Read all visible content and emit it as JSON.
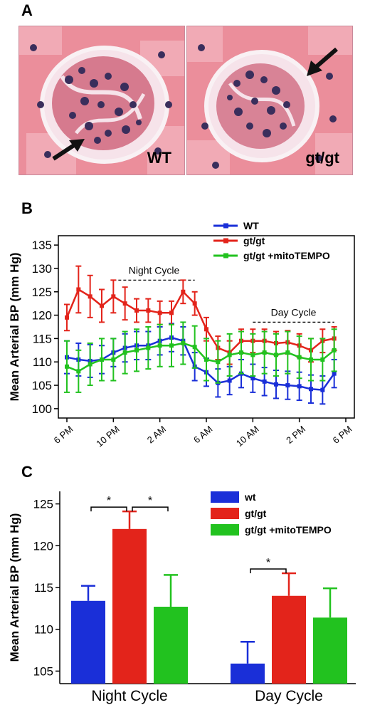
{
  "panels": {
    "A": {
      "letter": "A",
      "images": [
        {
          "label": "WT"
        },
        {
          "label": "gt/gt"
        }
      ]
    },
    "B": {
      "letter": "B"
    },
    "C": {
      "letter": "C"
    }
  },
  "colors": {
    "wt": "#1a2fd8",
    "gtgt": "#e3241b",
    "mito": "#22c21f",
    "tissue": "#e98a97",
    "nucleus": "#3a2e5c"
  },
  "chart_data": [
    {
      "type": "line",
      "ylabel": "Mean Arterial BP (mm Hg)",
      "ylim": [
        98,
        137
      ],
      "yticks": [
        100,
        105,
        110,
        115,
        120,
        125,
        130,
        135
      ],
      "xtick_labels": [
        "6 PM",
        "10 PM",
        "2 AM",
        "6 AM",
        "10 AM",
        "2 PM",
        "6 PM"
      ],
      "xtick_hours": [
        0,
        4,
        8,
        12,
        16,
        20,
        24
      ],
      "x_hours": [
        0,
        1,
        2,
        3,
        4,
        5,
        6,
        7,
        8,
        9,
        10,
        11,
        12,
        13,
        14,
        15,
        16,
        17,
        18,
        19,
        20,
        21,
        22,
        23
      ],
      "annotations": [
        {
          "text": "Night Cycle",
          "from_hour": 4,
          "to_hour": 11,
          "y": 127.5
        },
        {
          "text": "Day Cycle",
          "from_hour": 16,
          "to_hour": 23,
          "y": 118.5
        }
      ],
      "legend_position": "top-right",
      "series": [
        {
          "name": "WT",
          "color": "#1a2fd8",
          "values": [
            111,
            110.5,
            110.2,
            110.5,
            112,
            113,
            113.5,
            113.5,
            114.5,
            115.2,
            114.5,
            109,
            107.8,
            105.5,
            106,
            107.5,
            106.5,
            105.8,
            105.2,
            105,
            104.8,
            104.2,
            104,
            107.5
          ],
          "errors": [
            3.5,
            3.5,
            3.5,
            3,
            3,
            3,
            3,
            3,
            3,
            3,
            3,
            3,
            3,
            3,
            3,
            3,
            3,
            3,
            3,
            3,
            3,
            3,
            3,
            3
          ]
        },
        {
          "name": "gt/gt",
          "color": "#e3241b",
          "values": [
            119.5,
            125.5,
            124,
            122,
            124,
            122.5,
            121,
            121,
            120.5,
            120.5,
            125,
            122.5,
            117,
            113,
            112,
            114.5,
            114.5,
            114.5,
            114,
            114.2,
            113.5,
            112.5,
            114.5,
            115
          ],
          "errors": [
            2.8,
            5,
            4.5,
            3.5,
            3.5,
            3.5,
            2.5,
            2.5,
            2.5,
            2.5,
            2.5,
            2.5,
            2.5,
            2.5,
            2.5,
            2.5,
            2.5,
            2.5,
            2.5,
            2.5,
            2.5,
            2.5,
            2.5,
            2.5
          ]
        },
        {
          "name": "gt/gt +mitoTEMPO",
          "color": "#22c21f",
          "values": [
            109,
            108,
            109.5,
            110.5,
            110.5,
            112,
            112.5,
            113,
            113.5,
            113.5,
            114,
            113.2,
            110.5,
            110,
            111.5,
            112,
            111.5,
            112,
            111.5,
            112,
            111,
            110.5,
            110.5,
            112.5
          ],
          "errors": [
            5.5,
            4.5,
            4.5,
            4.5,
            4.5,
            4.5,
            4.5,
            4.5,
            4.5,
            4.5,
            4.5,
            4.5,
            4.5,
            4.5,
            4.5,
            4.5,
            4.5,
            4.5,
            4.5,
            4.5,
            4.5,
            4.5,
            4.5,
            4.5
          ]
        }
      ]
    },
    {
      "type": "bar",
      "ylabel": "Mean Arterial BP (mm Hg)",
      "ylim": [
        103.5,
        126.5
      ],
      "yticks": [
        105,
        110,
        115,
        120,
        125
      ],
      "categories": [
        "Night Cycle",
        "Day Cycle"
      ],
      "legend_position": "top-right",
      "series": [
        {
          "name": "wt",
          "color": "#1a2fd8",
          "values": [
            113.4,
            105.9
          ],
          "errors": [
            1.8,
            2.6
          ]
        },
        {
          "name": "gt/gt",
          "color": "#e3241b",
          "values": [
            122.0,
            114.0
          ],
          "errors": [
            2.1,
            2.7
          ]
        },
        {
          "name": "gt/gt +mitoTEMPO",
          "color": "#22c21f",
          "values": [
            112.7,
            111.4
          ],
          "errors": [
            3.8,
            3.5
          ]
        }
      ],
      "significance": [
        {
          "category": 0,
          "from_series": 0,
          "to_series": 1,
          "label": "*"
        },
        {
          "category": 0,
          "from_series": 1,
          "to_series": 2,
          "label": "*"
        },
        {
          "category": 1,
          "from_series": 0,
          "to_series": 1,
          "label": "*"
        }
      ]
    }
  ]
}
